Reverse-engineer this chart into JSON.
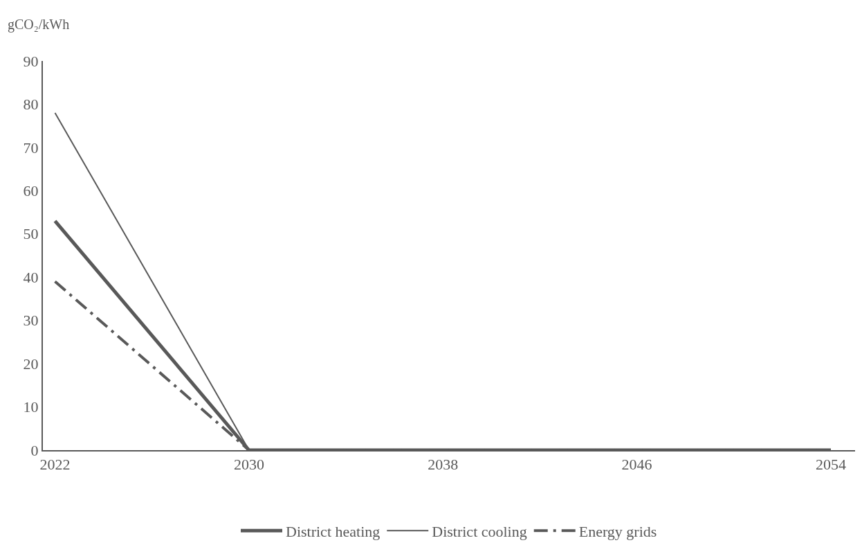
{
  "chart_data": {
    "type": "line",
    "ylabel": "gCO₂/kWh",
    "x": [
      2022,
      2030,
      2054
    ],
    "xlim": [
      2021.5,
      2055
    ],
    "xticks": [
      2022,
      2030,
      2038,
      2046,
      2054
    ],
    "ylim": [
      0,
      90
    ],
    "yticks": [
      0,
      10,
      20,
      30,
      40,
      50,
      60,
      70,
      80,
      90
    ],
    "legend": "bottom",
    "series": [
      {
        "name": "District heating",
        "color": "#595959",
        "values": [
          53,
          0,
          0
        ],
        "line_style": "solid"
      },
      {
        "name": "District cooling",
        "color": "#595959",
        "values": [
          78,
          0,
          0
        ],
        "line_style": "solid"
      },
      {
        "name": "Energy grids",
        "color": "#595959",
        "values": [
          39,
          0,
          0
        ],
        "line_style": "dashdot"
      }
    ]
  }
}
